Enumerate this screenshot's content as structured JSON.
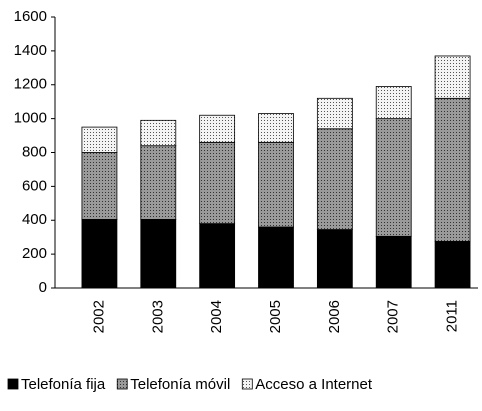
{
  "chart_data": {
    "type": "stacked-bar",
    "categories": [
      "2002",
      "2003",
      "2004",
      "2005",
      "2006",
      "2007",
      "2011"
    ],
    "series": [
      {
        "name": "Telefonía fija",
        "color": "#000000",
        "values": [
          405,
          405,
          380,
          360,
          345,
          305,
          275
        ]
      },
      {
        "name": "Telefonía móvil",
        "color": "#808080",
        "values": [
          395,
          435,
          480,
          500,
          595,
          695,
          845
        ]
      },
      {
        "name": "Acceso a Internet",
        "color": "#e6e6e6",
        "values": [
          150,
          150,
          160,
          170,
          180,
          190,
          250
        ]
      }
    ],
    "ylim": [
      0,
      1600
    ],
    "yticks": [
      0,
      200,
      400,
      600,
      800,
      1000,
      1200,
      1400,
      1600
    ],
    "grid": false,
    "legend": "bottom"
  }
}
